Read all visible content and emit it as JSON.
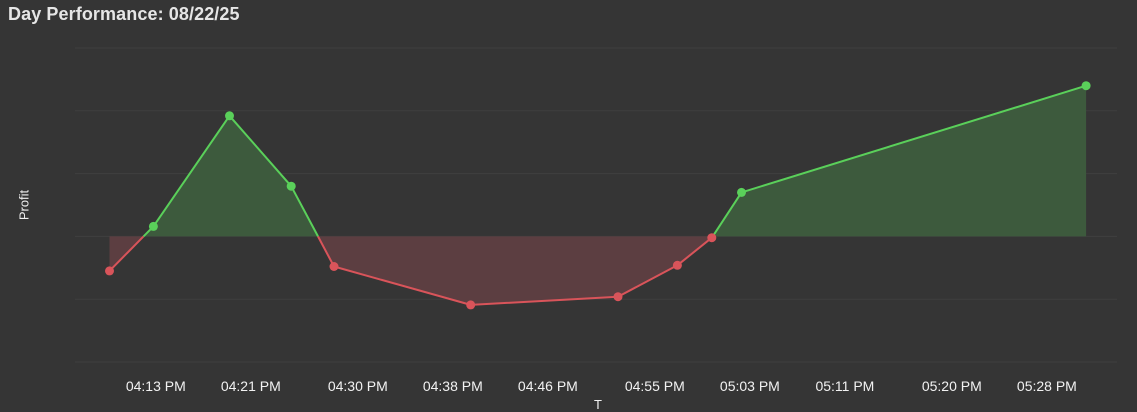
{
  "title": "Day Performance: 08/22/25",
  "chart_data": {
    "type": "area",
    "title": "Day Performance: 08/22/25",
    "xlabel": "T",
    "ylabel": "Profit",
    "x_ticks": [
      "04:13 PM",
      "04:21 PM",
      "04:30 PM",
      "04:38 PM",
      "04:46 PM",
      "04:55 PM",
      "05:03 PM",
      "05:11 PM",
      "05:20 PM",
      "05:28 PM"
    ],
    "x_tick_minutes": [
      973,
      981,
      990,
      998,
      1006,
      1015,
      1023,
      1031,
      1040,
      1048
    ],
    "points": [
      {
        "t": 969.1,
        "value": -5.5
      },
      {
        "t": 972.8,
        "value": 1.6
      },
      {
        "t": 979.2,
        "value": 19.2
      },
      {
        "t": 984.4,
        "value": 8.0
      },
      {
        "t": 988.0,
        "value": -4.8
      },
      {
        "t": 999.5,
        "value": -10.9
      },
      {
        "t": 1011.9,
        "value": -9.6
      },
      {
        "t": 1016.9,
        "value": -4.6
      },
      {
        "t": 1019.8,
        "value": -0.2
      },
      {
        "t": 1022.3,
        "value": 7.0
      },
      {
        "t": 1051.3,
        "value": 24.0
      }
    ],
    "xlim": [
      966.2,
      1053.9
    ],
    "ylim": [
      -20,
      30
    ],
    "baseline": 0,
    "grid": true,
    "legend": "none",
    "colors": {
      "positive_line": "#5ad05a",
      "positive_fill": "#3d5a3d",
      "negative_line": "#d9545a",
      "negative_fill": "#5c3e41"
    }
  }
}
